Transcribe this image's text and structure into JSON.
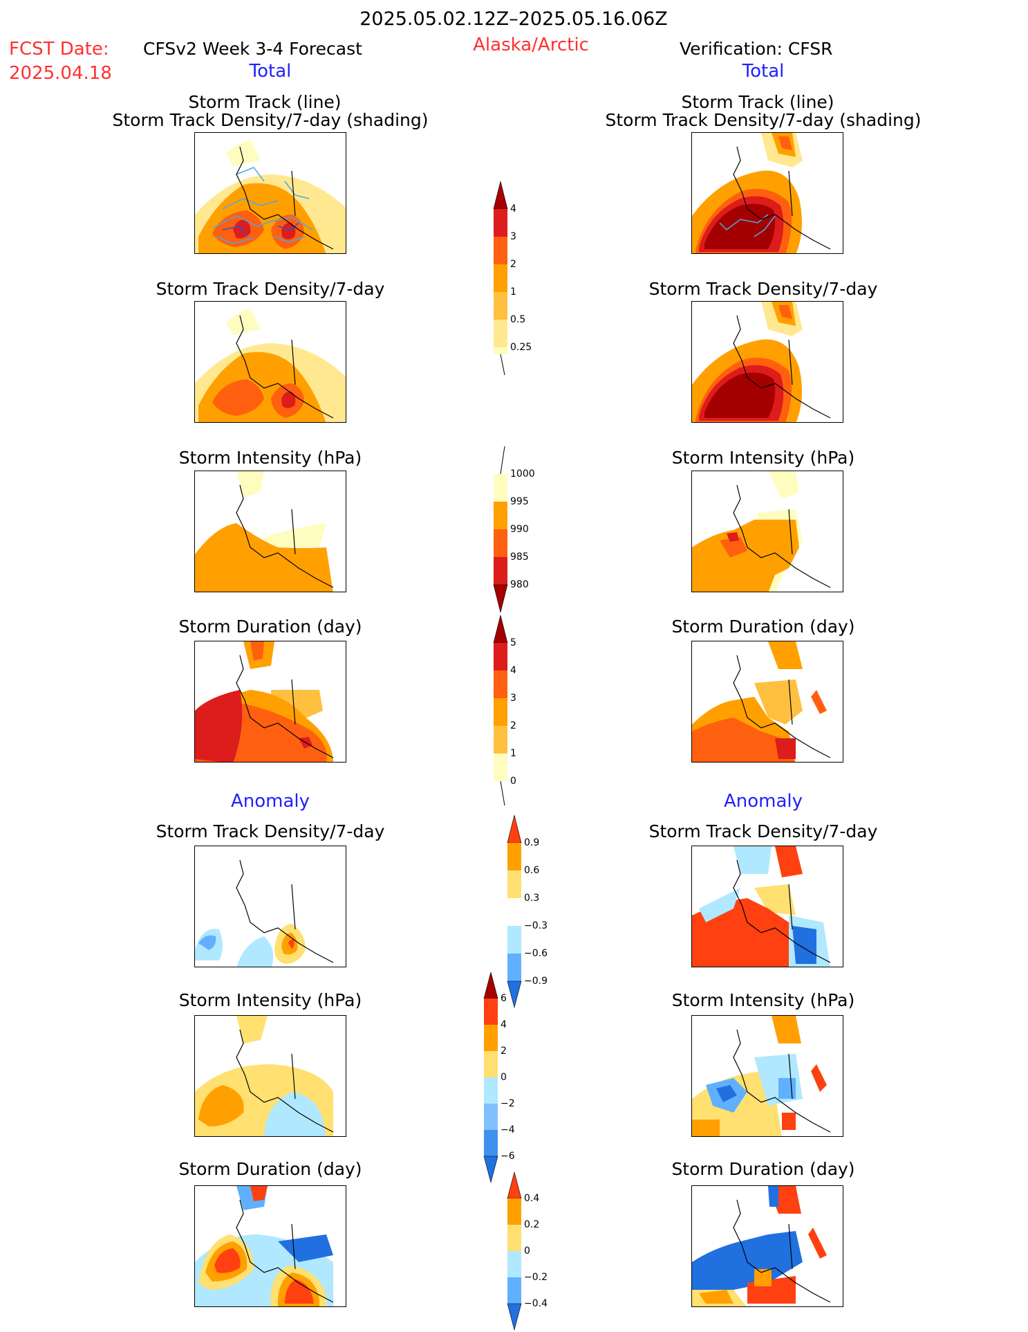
{
  "header": {
    "date_range": "2025.05.02.12Z–2025.05.16.06Z",
    "fcst_label": "FCST Date:",
    "fcst_date": "2025.04.18",
    "model": "CFSv2 Week 3-4 Forecast",
    "region": "Alaska/Arctic",
    "verification": "Verification: CFSR"
  },
  "sections": {
    "total": "Total",
    "anomaly": "Anomaly"
  },
  "panel_titles": {
    "track_line": "Storm Track (line)",
    "track_density_shading": "Storm Track Density/7-day (shading)",
    "track_density": "Storm Track Density/7-day",
    "intensity": "Storm Intensity (hPa)",
    "duration": "Storm Duration (day)"
  },
  "colorbars": {
    "density": {
      "ticks": [
        "4",
        "3",
        "2",
        "1",
        "0.5",
        "0.25"
      ],
      "colors": [
        "#a50000",
        "#dd1c1c",
        "#ff6010",
        "#ffa000",
        "#ffc040",
        "#ffe890",
        "#fffcc0"
      ]
    },
    "intensity": {
      "ticks": [
        "1000",
        "995",
        "990",
        "985",
        "980"
      ],
      "colors": [
        "#fffcc0",
        "#ffa000",
        "#ff6010",
        "#dd1c1c",
        "#a50000"
      ]
    },
    "duration": {
      "ticks": [
        "5",
        "4",
        "3",
        "2",
        "1",
        "0"
      ],
      "colors": [
        "#a50000",
        "#dd1c1c",
        "#ff6010",
        "#ffa000",
        "#ffc040",
        "#fffcc0"
      ]
    },
    "anom_density": {
      "ticks": [
        "0.9",
        "0.6",
        "0.3",
        "−0.3",
        "−0.6",
        "−0.9"
      ],
      "colors": [
        "#ff4010",
        "#ffa000",
        "#ffe070",
        "#ffffff",
        "#b0e8ff",
        "#60b0ff",
        "#2070e0"
      ]
    },
    "anom_intensity": {
      "ticks": [
        "6",
        "4",
        "2",
        "0",
        "−2",
        "−4",
        "−6"
      ],
      "colors": [
        "#a50000",
        "#ff4010",
        "#ffa000",
        "#ffe070",
        "#b0e8ff",
        "#80c0ff",
        "#4090f0",
        "#2070e0"
      ]
    },
    "anom_duration": {
      "ticks": [
        "0.4",
        "0.2",
        "0",
        "−0.2",
        "−0.4"
      ],
      "colors": [
        "#ff4010",
        "#ffa000",
        "#ffe070",
        "#b0e8ff",
        "#60b0ff",
        "#2070e0"
      ]
    }
  },
  "colors": {
    "title_red": "#ff3030",
    "section_blue": "#2020ff"
  }
}
